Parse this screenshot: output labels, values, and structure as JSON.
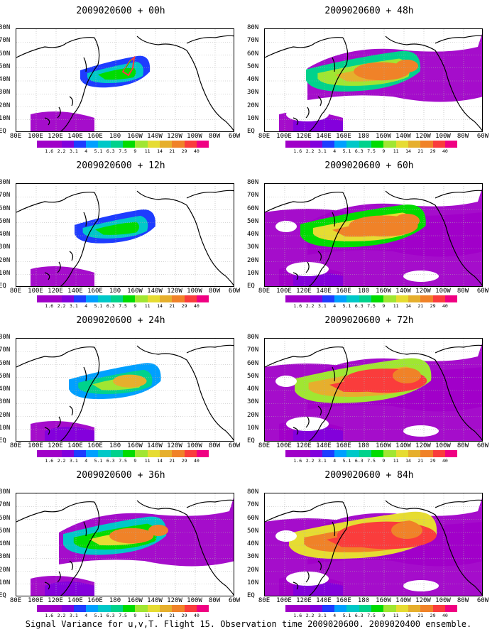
{
  "caption": "Signal Variance for u,v,T. Flight 15. Observation time 2009020600. 2009020400 ensemble.",
  "panels": [
    {
      "title": "2009020600 + 00h",
      "level": 0
    },
    {
      "title": "2009020600 + 48h",
      "level": 4
    },
    {
      "title": "2009020600 + 12h",
      "level": 1
    },
    {
      "title": "2009020600 + 60h",
      "level": 5
    },
    {
      "title": "2009020600 + 24h",
      "level": 2
    },
    {
      "title": "2009020600 + 72h",
      "level": 6
    },
    {
      "title": "2009020600 + 36h",
      "level": 3
    },
    {
      "title": "2009020600 + 84h",
      "level": 7
    }
  ],
  "lat_labels": [
    "80N",
    "70N",
    "60N",
    "50N",
    "40N",
    "30N",
    "20N",
    "10N",
    "EQ"
  ],
  "lon_labels": [
    "80E",
    "100E",
    "120E",
    "140E",
    "160E",
    "180",
    "160W",
    "140W",
    "120W",
    "100W",
    "80W",
    "60W"
  ],
  "colorbar": {
    "labels": [
      "1.6",
      "2.2",
      "3.1",
      "4",
      "5.1",
      "6.3",
      "7.5",
      "9",
      "11",
      "14",
      "21",
      "29",
      "40"
    ],
    "colors": [
      "#a000c8",
      "#8200dc",
      "#1e3cff",
      "#00a0ff",
      "#00c8c8",
      "#00d28c",
      "#00dc00",
      "#a0e632",
      "#e6dc32",
      "#e6af2d",
      "#f08228",
      "#fa3c3c",
      "#f00082"
    ]
  }
}
